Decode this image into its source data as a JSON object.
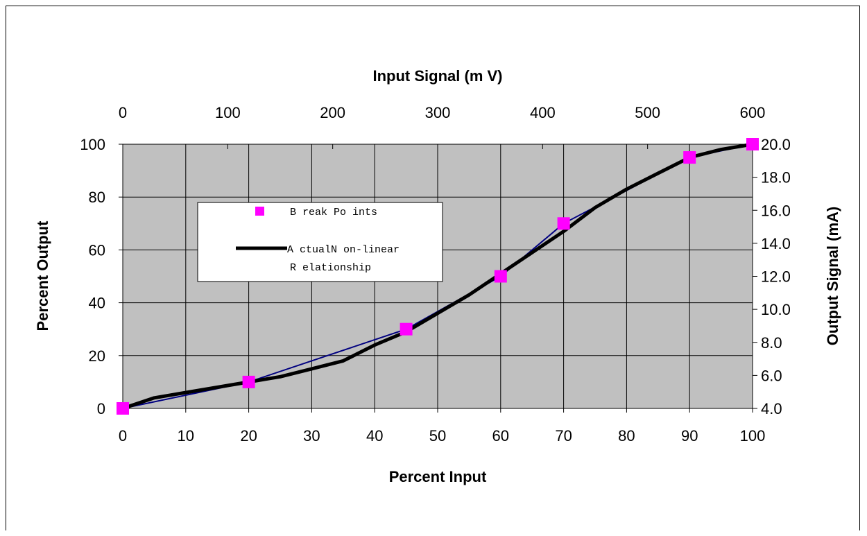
{
  "colors": {
    "plot_bg": "#c0c0c0",
    "grid": "#000000",
    "breakpoint": "#ff00ff",
    "actual_line": "#000000",
    "linear_segments": "#000080"
  },
  "chart_data": {
    "type": "line",
    "x_bottom": {
      "label": "Percent Input",
      "range": [
        0,
        100
      ],
      "ticks": [
        "0",
        "10",
        "20",
        "30",
        "40",
        "50",
        "60",
        "70",
        "80",
        "90",
        "100"
      ]
    },
    "x_top": {
      "label": "Input Signal (m V)",
      "range": [
        0,
        600
      ],
      "ticks": [
        "0",
        "100",
        "200",
        "300",
        "400",
        "500",
        "600"
      ]
    },
    "y_left": {
      "label": "Percent Output",
      "range": [
        0,
        100
      ],
      "ticks": [
        "0",
        "20",
        "40",
        "60",
        "80",
        "100"
      ]
    },
    "y_right": {
      "label": "Output Signal (mA)",
      "range": [
        4,
        20
      ],
      "ticks": [
        "4.0",
        "6.0",
        "8.0",
        "10.0",
        "12.0",
        "14.0",
        "16.0",
        "18.0",
        "20.0"
      ]
    },
    "grid": true,
    "legend_position": "upper-left inside plot",
    "series": [
      {
        "name": "B reak Po ints",
        "kind": "scatter",
        "points": [
          [
            0,
            0
          ],
          [
            20,
            10
          ],
          [
            45,
            30
          ],
          [
            60,
            50
          ],
          [
            70,
            70
          ],
          [
            90,
            95
          ],
          [
            100,
            100
          ]
        ]
      },
      {
        "name": "A ctualN on-linear R elationship",
        "legend_lines": [
          "A ctualN on-linear",
          "R elationship"
        ],
        "kind": "line",
        "points": [
          [
            0,
            0
          ],
          [
            5,
            4
          ],
          [
            10,
            6
          ],
          [
            15,
            8
          ],
          [
            20,
            10
          ],
          [
            25,
            12
          ],
          [
            30,
            15
          ],
          [
            35,
            18
          ],
          [
            40,
            24
          ],
          [
            45,
            29
          ],
          [
            50,
            36
          ],
          [
            55,
            43
          ],
          [
            60,
            51
          ],
          [
            65,
            59
          ],
          [
            70,
            67
          ],
          [
            75,
            76
          ],
          [
            80,
            83
          ],
          [
            85,
            89
          ],
          [
            90,
            95
          ],
          [
            95,
            98
          ],
          [
            100,
            100
          ]
        ]
      },
      {
        "kind": "line",
        "points": [
          [
            0,
            0
          ],
          [
            20,
            10
          ],
          [
            45,
            30
          ],
          [
            60,
            50
          ],
          [
            70,
            70
          ],
          [
            90,
            95
          ],
          [
            100,
            100
          ]
        ]
      }
    ]
  }
}
